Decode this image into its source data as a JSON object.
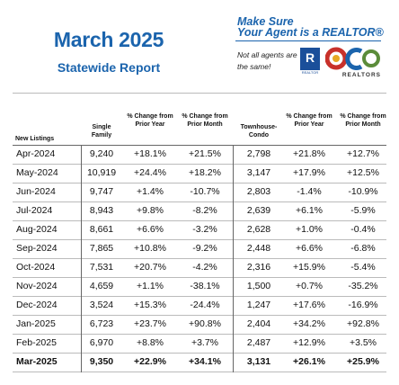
{
  "header": {
    "title": "March 2025",
    "subtitle": "Statewide Report"
  },
  "promo": {
    "line1": "Make Sure",
    "line2": "Your Agent is a REALTOR®",
    "note": "Not all agents are the same!",
    "r_logo_letter": "R",
    "r_logo_caption": "REALTOR",
    "car_caption": "REALTORS"
  },
  "table": {
    "group_label": "New Listings",
    "columns": {
      "single_family": "Single Family",
      "sf_yoy": "% Change from Prior Year",
      "sf_mom": "% Change from Prior Month",
      "townhouse": "Townhouse-Condo",
      "th_yoy": "% Change from Prior Year",
      "th_mom": "% Change from Prior Month"
    },
    "rows": [
      {
        "month": "Apr-2024",
        "sf": "9,240",
        "sf_yoy": "+18.1%",
        "sf_mom": "+21.5%",
        "th": "2,798",
        "th_yoy": "+21.8%",
        "th_mom": "+12.7%"
      },
      {
        "month": "May-2024",
        "sf": "10,919",
        "sf_yoy": "+24.4%",
        "sf_mom": "+18.2%",
        "th": "3,147",
        "th_yoy": "+17.9%",
        "th_mom": "+12.5%"
      },
      {
        "month": "Jun-2024",
        "sf": "9,747",
        "sf_yoy": "+1.4%",
        "sf_mom": "-10.7%",
        "th": "2,803",
        "th_yoy": "-1.4%",
        "th_mom": "-10.9%"
      },
      {
        "month": "Jul-2024",
        "sf": "8,943",
        "sf_yoy": "+9.8%",
        "sf_mom": "-8.2%",
        "th": "2,639",
        "th_yoy": "+6.1%",
        "th_mom": "-5.9%"
      },
      {
        "month": "Aug-2024",
        "sf": "8,661",
        "sf_yoy": "+6.6%",
        "sf_mom": "-3.2%",
        "th": "2,628",
        "th_yoy": "+1.0%",
        "th_mom": "-0.4%"
      },
      {
        "month": "Sep-2024",
        "sf": "7,865",
        "sf_yoy": "+10.8%",
        "sf_mom": "-9.2%",
        "th": "2,448",
        "th_yoy": "+6.6%",
        "th_mom": "-6.8%"
      },
      {
        "month": "Oct-2024",
        "sf": "7,531",
        "sf_yoy": "+20.7%",
        "sf_mom": "-4.2%",
        "th": "2,316",
        "th_yoy": "+15.9%",
        "th_mom": "-5.4%"
      },
      {
        "month": "Nov-2024",
        "sf": "4,659",
        "sf_yoy": "+1.1%",
        "sf_mom": "-38.1%",
        "th": "1,500",
        "th_yoy": "+0.7%",
        "th_mom": "-35.2%"
      },
      {
        "month": "Dec-2024",
        "sf": "3,524",
        "sf_yoy": "+15.3%",
        "sf_mom": "-24.4%",
        "th": "1,247",
        "th_yoy": "+17.6%",
        "th_mom": "-16.9%"
      },
      {
        "month": "Jan-2025",
        "sf": "6,723",
        "sf_yoy": "+23.7%",
        "sf_mom": "+90.8%",
        "th": "2,404",
        "th_yoy": "+34.2%",
        "th_mom": "+92.8%"
      },
      {
        "month": "Feb-2025",
        "sf": "6,970",
        "sf_yoy": "+8.8%",
        "sf_mom": "+3.7%",
        "th": "2,487",
        "th_yoy": "+12.9%",
        "th_mom": "+3.5%"
      },
      {
        "month": "Mar-2025",
        "sf": "9,350",
        "sf_yoy": "+22.9%",
        "sf_mom": "+34.1%",
        "th": "3,131",
        "th_yoy": "+26.1%",
        "th_mom": "+25.9%"
      }
    ]
  },
  "colors": {
    "accent_blue": "#1b64ad",
    "logo_red": "#c8312a",
    "logo_gold": "#e7a823",
    "logo_green": "#5b8c3a"
  }
}
